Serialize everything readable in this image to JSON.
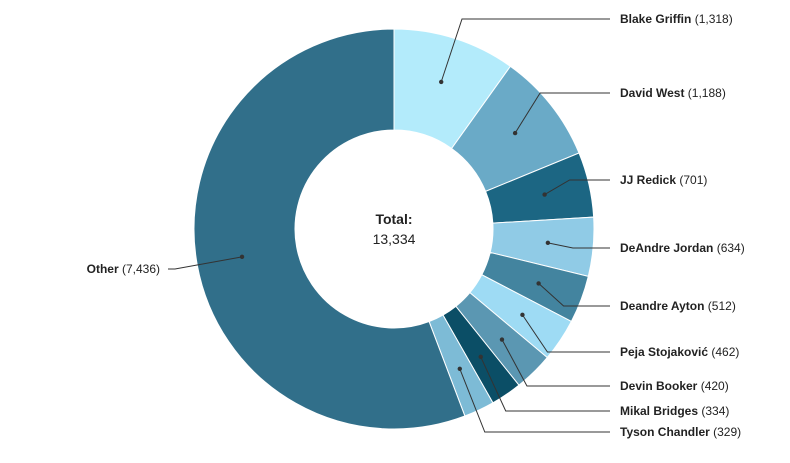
{
  "chart_data": {
    "type": "pie",
    "variant": "donut",
    "center": {
      "title": "Total:",
      "value": "13,334"
    },
    "slices": [
      {
        "name": "Blake Griffin",
        "value": 1318,
        "value_label": "1,318",
        "color": "#b3ebfb"
      },
      {
        "name": "David West",
        "value": 1188,
        "value_label": "1,188",
        "color": "#6aaac7"
      },
      {
        "name": "JJ Redick",
        "value": 701,
        "value_label": "701",
        "color": "#1c6683"
      },
      {
        "name": "DeAndre Jordan",
        "value": 634,
        "value_label": "634",
        "color": "#90cbe6"
      },
      {
        "name": "Deandre Ayton",
        "value": 512,
        "value_label": "512",
        "color": "#43849f"
      },
      {
        "name": "Peja Stojaković",
        "value": 462,
        "value_label": "462",
        "color": "#9edbf4"
      },
      {
        "name": "Devin Booker",
        "value": 420,
        "value_label": "420",
        "color": "#5b97b2"
      },
      {
        "name": "Mikal Bridges",
        "value": 334,
        "value_label": "334",
        "color": "#0b4e66"
      },
      {
        "name": "Tyson Chandler",
        "value": 329,
        "value_label": "329",
        "color": "#7dbbd6"
      },
      {
        "name": "Other",
        "value": 7436,
        "value_label": "7,436",
        "color": "#316f8a"
      }
    ]
  }
}
